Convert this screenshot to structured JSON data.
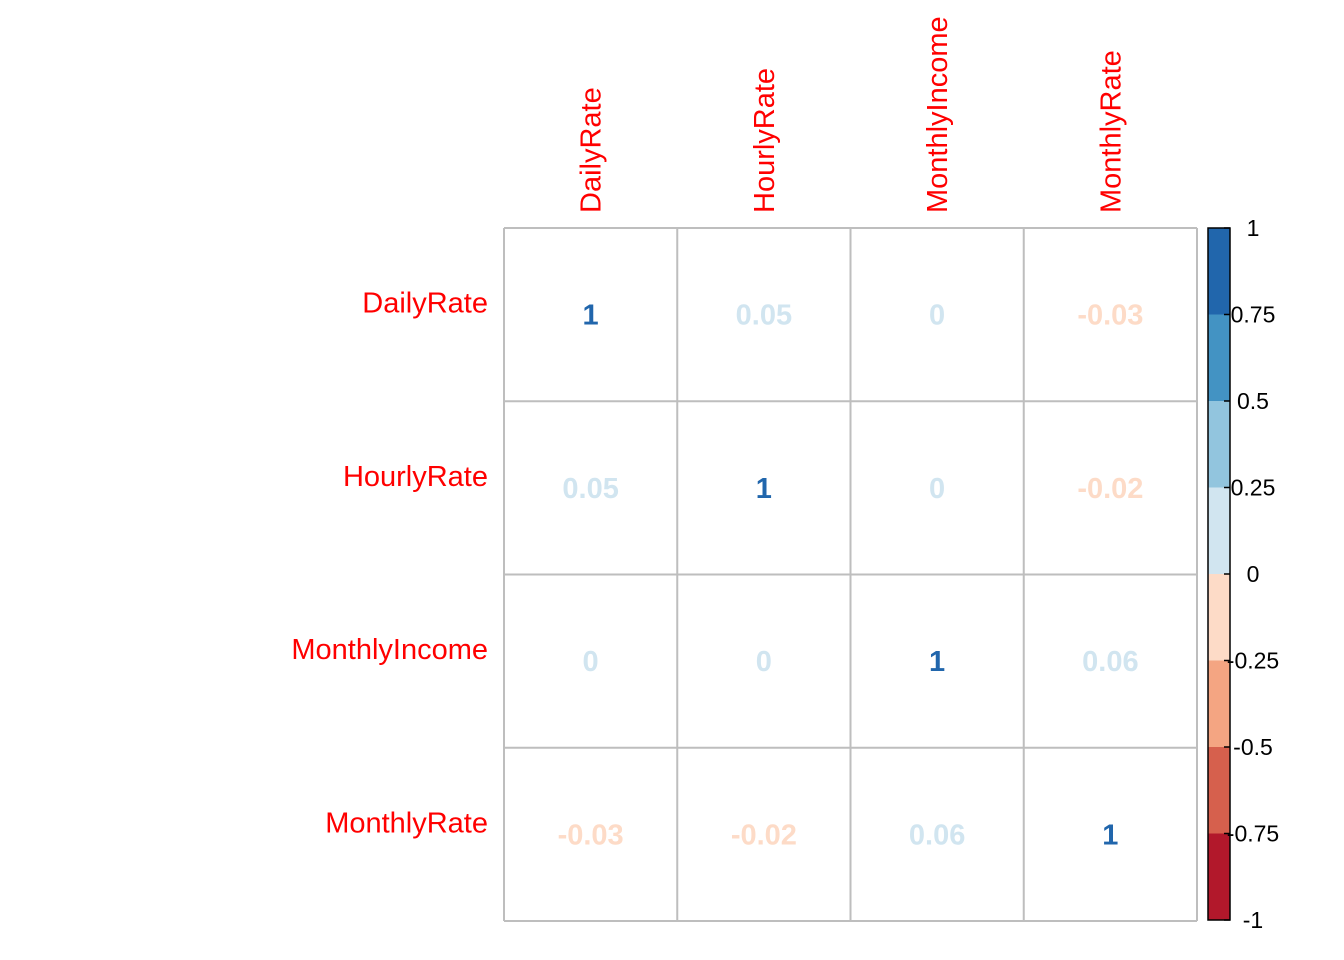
{
  "chart_data": {
    "type": "heatmap",
    "variables": [
      "DailyRate",
      "HourlyRate",
      "MonthlyIncome",
      "MonthlyRate"
    ],
    "matrix": [
      [
        1,
        0.05,
        0,
        -0.03
      ],
      [
        0.05,
        1,
        0,
        -0.02
      ],
      [
        0,
        0,
        1,
        0.06
      ],
      [
        -0.03,
        -0.02,
        0.06,
        1
      ]
    ],
    "cell_labels": [
      [
        "1",
        "0.05",
        "0",
        "-0.03"
      ],
      [
        "0.05",
        "1",
        "0",
        "-0.02"
      ],
      [
        "0",
        "0",
        "1",
        "0.06"
      ],
      [
        "-0.03",
        "-0.02",
        "0.06",
        "1"
      ]
    ],
    "label_color": "#FF0000",
    "grid": true,
    "legend": {
      "placement": "right",
      "range": [
        -1,
        1
      ],
      "tick_labels": [
        "1",
        "0.75",
        "0.5",
        "0.25",
        "0",
        "-0.25",
        "-0.5",
        "-0.75",
        "-1"
      ],
      "tick_values": [
        1,
        0.75,
        0.5,
        0.25,
        0,
        -0.25,
        -0.5,
        -0.75,
        -1
      ],
      "bins": [
        {
          "from": 0.75,
          "to": 1,
          "color": "#2166AC"
        },
        {
          "from": 0.5,
          "to": 0.75,
          "color": "#4393C3"
        },
        {
          "from": 0.25,
          "to": 0.5,
          "color": "#92C5DE"
        },
        {
          "from": 0,
          "to": 0.25,
          "color": "#D1E5F0"
        },
        {
          "from": -0.25,
          "to": 0,
          "color": "#FDDBC7"
        },
        {
          "from": -0.5,
          "to": -0.25,
          "color": "#F4A582"
        },
        {
          "from": -0.75,
          "to": -0.5,
          "color": "#D6604D"
        },
        {
          "from": -1,
          "to": -0.75,
          "color": "#B2182B"
        }
      ]
    }
  }
}
